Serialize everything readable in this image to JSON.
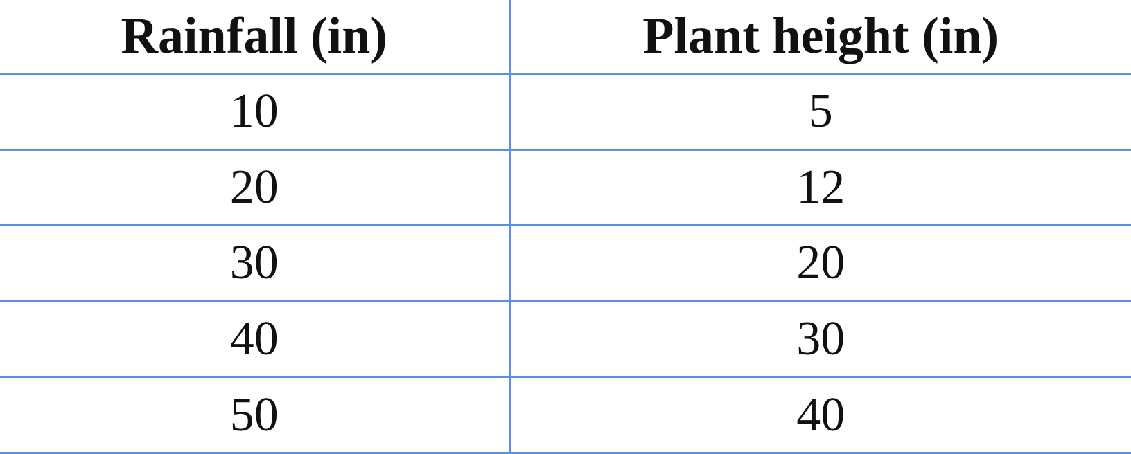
{
  "chart_data": {
    "type": "table",
    "columns": [
      "Rainfall (in)",
      "Plant height (in)"
    ],
    "rows": [
      [
        "10",
        "5"
      ],
      [
        "20",
        "12"
      ],
      [
        "30",
        "20"
      ],
      [
        "40",
        "30"
      ],
      [
        "50",
        "40"
      ]
    ],
    "grid_color": "#5b8ee6"
  }
}
